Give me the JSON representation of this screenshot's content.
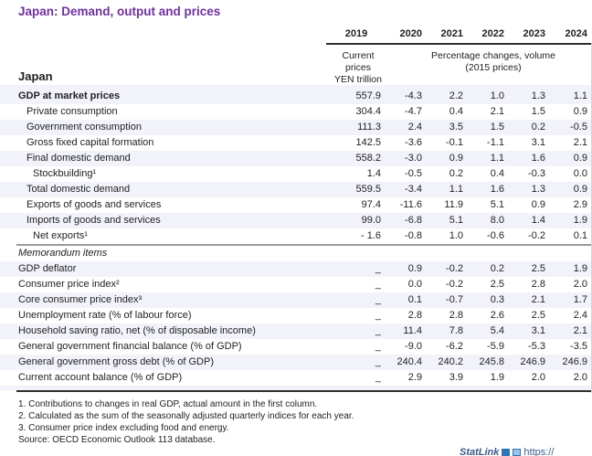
{
  "title": "Japan: Demand, output and prices",
  "header": {
    "region": "Japan",
    "years": [
      "2019",
      "2020",
      "2021",
      "2022",
      "2023",
      "2024"
    ],
    "col_2019_unit": [
      "Current prices",
      "YEN trillion"
    ],
    "volume_unit": [
      "Percentage changes, volume",
      "(2015 prices)"
    ]
  },
  "sections": [
    {
      "name": "main",
      "rows": [
        {
          "label": "GDP at market prices",
          "indent": 0,
          "style": "bold",
          "values": [
            "557.9",
            "-4.3",
            "2.2",
            "1.0",
            "1.3",
            "1.1"
          ]
        },
        {
          "label": "Private consumption",
          "indent": 1,
          "style": "normal",
          "values": [
            "304.4",
            "-4.7",
            "0.4",
            "2.1",
            "1.5",
            "0.9"
          ]
        },
        {
          "label": "Government consumption",
          "indent": 1,
          "style": "normal",
          "values": [
            "111.3",
            "2.4",
            "3.5",
            "1.5",
            "0.2",
            "-0.5"
          ]
        },
        {
          "label": "Gross fixed capital formation",
          "indent": 1,
          "style": "normal",
          "values": [
            "142.5",
            "-3.6",
            "-0.1",
            "-1.1",
            "3.1",
            "2.1"
          ]
        },
        {
          "label": "Final domestic demand",
          "indent": 1,
          "style": "normal",
          "values": [
            "558.2",
            "-3.0",
            "0.9",
            "1.1",
            "1.6",
            "0.9"
          ]
        },
        {
          "label": "Stockbuilding¹",
          "indent": 2,
          "style": "normal",
          "values": [
            "1.4",
            "-0.5",
            "0.2",
            "0.4",
            "-0.3",
            "0.0"
          ]
        },
        {
          "label": "Total domestic demand",
          "indent": 1,
          "style": "normal",
          "values": [
            "559.5",
            "-3.4",
            "1.1",
            "1.6",
            "1.3",
            "0.9"
          ]
        },
        {
          "label": "Exports of goods and services",
          "indent": 1,
          "style": "normal",
          "values": [
            "97.4",
            "-11.6",
            "11.9",
            "5.1",
            "0.9",
            "2.9"
          ]
        },
        {
          "label": "Imports of goods and services",
          "indent": 1,
          "style": "normal",
          "values": [
            "99.0",
            "-6.8",
            "5.1",
            "8.0",
            "1.4",
            "1.9"
          ]
        },
        {
          "label": "Net exports¹",
          "indent": 2,
          "style": "normal",
          "values": [
            "- 1.6",
            "-0.8",
            "1.0",
            "-0.6",
            "-0.2",
            "0.1"
          ]
        }
      ]
    },
    {
      "name": "memorandum",
      "rows": [
        {
          "label": "Memorandum items",
          "indent": 0,
          "style": "italic",
          "values": []
        },
        {
          "label": "GDP deflator",
          "indent": 0,
          "style": "normal",
          "values": [
            "_",
            "0.9",
            "-0.2",
            "0.2",
            "2.5",
            "1.9"
          ]
        },
        {
          "label": "Consumer price index²",
          "indent": 0,
          "style": "normal",
          "values": [
            "_",
            "0.0",
            "-0.2",
            "2.5",
            "2.8",
            "2.0"
          ]
        },
        {
          "label": "Core consumer price index³",
          "indent": 0,
          "style": "normal",
          "values": [
            "_",
            "0.1",
            "-0.7",
            "0.3",
            "2.1",
            "1.7"
          ]
        },
        {
          "label": "Unemployment rate (% of labour force)",
          "indent": 0,
          "style": "normal",
          "values": [
            "_",
            "2.8",
            "2.8",
            "2.6",
            "2.5",
            "2.4"
          ]
        },
        {
          "label": "Household saving ratio, net (% of disposable income)",
          "indent": 0,
          "style": "normal",
          "values": [
            "_",
            "11.4",
            "7.8",
            "5.4",
            "3.1",
            "2.1"
          ]
        },
        {
          "label": "General government financial balance (% of GDP)",
          "indent": 0,
          "style": "normal",
          "values": [
            "_",
            "-9.0",
            "-6.2",
            "-5.9",
            "-5.3",
            "-3.5"
          ]
        },
        {
          "label": "General government gross debt (% of GDP)",
          "indent": 0,
          "style": "normal",
          "values": [
            "_",
            "240.4",
            "240.2",
            "245.8",
            "246.9",
            "246.9"
          ]
        },
        {
          "label": "Current account balance (% of GDP)",
          "indent": 0,
          "style": "normal",
          "values": [
            "_",
            "2.9",
            "3.9",
            "1.9",
            "2.0",
            "2.0"
          ]
        }
      ]
    }
  ],
  "footnotes": [
    "1. Contributions to changes in real GDP, actual amount in the first column.",
    "2. Calculated as the sum of the seasonally adjusted quarterly indices for each year.",
    "3. Consumer price index excluding food and energy."
  ],
  "source": "Source: OECD Economic Outlook 113 database.",
  "statlink": {
    "label": "StatLink",
    "url_text": "https://"
  }
}
